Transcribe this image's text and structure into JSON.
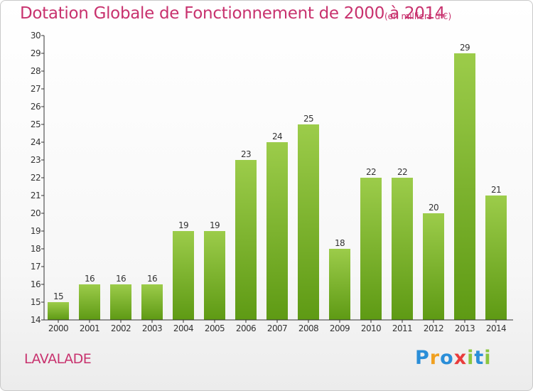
{
  "chart_data": {
    "type": "bar",
    "title": "Dotation Globale de Fonctionnement de 2000 à 2014",
    "subtitle": "(en milliers d'€)",
    "xlabel": "",
    "ylabel": "",
    "categories": [
      "2000",
      "2001",
      "2002",
      "2003",
      "2004",
      "2005",
      "2006",
      "2007",
      "2008",
      "2009",
      "2010",
      "2011",
      "2012",
      "2013",
      "2014"
    ],
    "values": [
      15,
      16,
      16,
      16,
      19,
      19,
      23,
      24,
      25,
      18,
      22,
      22,
      20,
      29,
      21
    ],
    "ylim": [
      14,
      30
    ],
    "yticks": [
      14,
      15,
      16,
      17,
      18,
      19,
      20,
      21,
      22,
      23,
      24,
      25,
      26,
      27,
      28,
      29,
      30
    ],
    "grid": false,
    "colors": {
      "bar_light": "#9ccc4a",
      "bar_dark": "#5e9a14",
      "title": "#c8326e"
    }
  },
  "location": "LAVALADE",
  "logo": {
    "text": "Proxiti"
  }
}
